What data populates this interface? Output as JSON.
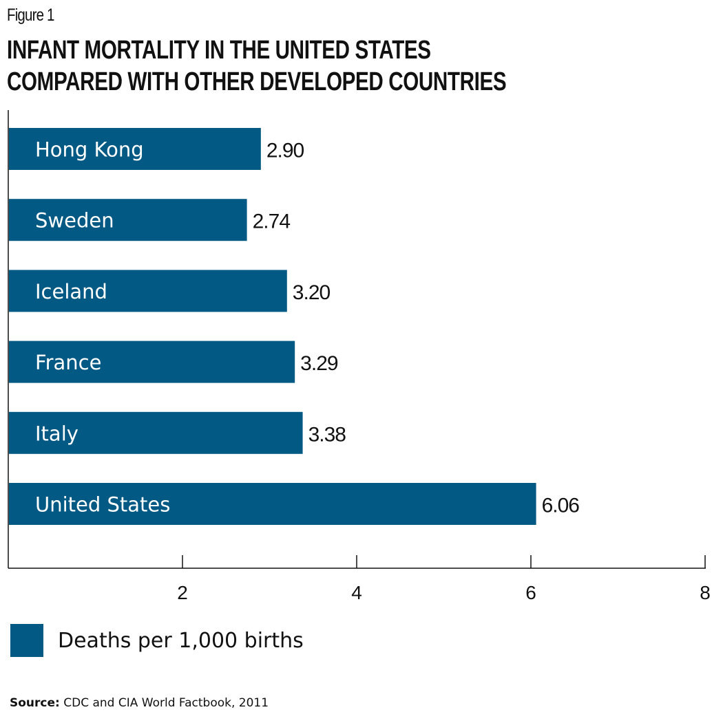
{
  "figure_label": "Figure 1",
  "title_lines": [
    "INFANT MORTALITY IN THE UNITED STATES",
    "COMPARED WITH OTHER DEVELOPED COUNTRIES"
  ],
  "colors": {
    "bar": "#025a84",
    "bar_label": "#ffffff",
    "axis": "#111111"
  },
  "chart_data": {
    "type": "bar",
    "orientation": "horizontal",
    "title": "INFANT MORTALITY IN THE UNITED STATES COMPARED WITH OTHER DEVELOPED COUNTRIES",
    "categories": [
      "Hong Kong",
      "Sweden",
      "Iceland",
      "France",
      "Italy",
      "United States"
    ],
    "values": [
      2.9,
      2.74,
      3.2,
      3.29,
      3.38,
      6.06
    ],
    "value_labels": [
      "2.90",
      "2.74",
      "3.20",
      "3.29",
      "3.38",
      "6.06"
    ],
    "xlim": [
      0,
      8
    ],
    "xticks": [
      2,
      4,
      6,
      8
    ],
    "xtick_labels": [
      "2",
      "4",
      "6",
      "8"
    ],
    "xlabel": "",
    "ylabel": "",
    "grid": false,
    "legend": {
      "entries": [
        "Deaths per 1,000 births"
      ],
      "placement": "bottom-left"
    }
  },
  "source": {
    "label": "Source:",
    "text": " CDC and CIA World Factbook, 2011"
  }
}
